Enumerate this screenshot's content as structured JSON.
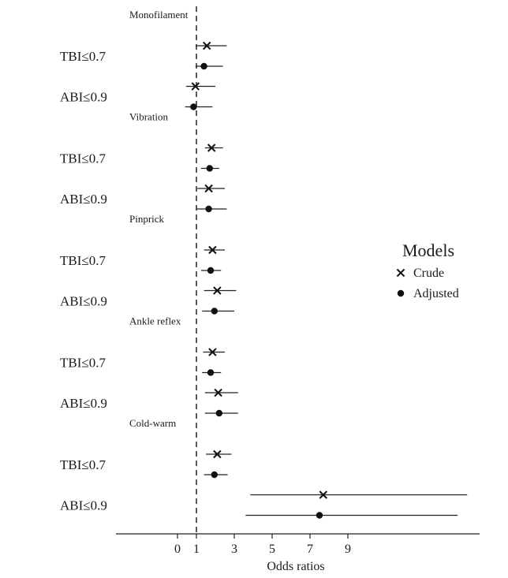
{
  "chart_data": {
    "type": "forest",
    "xlabel": "Odds ratios",
    "xticks": [
      0,
      1,
      3,
      5,
      7,
      9
    ],
    "reference_line": 1,
    "legend": {
      "title": "Models",
      "position": "right",
      "entries": [
        {
          "label": "Crude",
          "marker": "x"
        },
        {
          "label": "Adjusted",
          "marker": "dot"
        }
      ]
    },
    "groups": [
      {
        "name": "Monofilament",
        "rows": [
          {
            "label": "TBI≤0.7",
            "crude": {
              "or": 1.55,
              "lo": 0.95,
              "hi": 2.6
            },
            "adjusted": {
              "or": 1.4,
              "lo": 0.95,
              "hi": 2.4
            }
          },
          {
            "label": "ABI≤0.9",
            "crude": {
              "or": 0.95,
              "lo": 0.45,
              "hi": 2.0
            },
            "adjusted": {
              "or": 0.85,
              "lo": 0.4,
              "hi": 1.85
            }
          }
        ]
      },
      {
        "name": "Vibration",
        "rows": [
          {
            "label": "TBI≤0.7",
            "crude": {
              "or": 1.8,
              "lo": 1.45,
              "hi": 2.4
            },
            "adjusted": {
              "or": 1.7,
              "lo": 1.25,
              "hi": 2.2
            }
          },
          {
            "label": "ABI≤0.9",
            "crude": {
              "or": 1.65,
              "lo": 1.05,
              "hi": 2.5
            },
            "adjusted": {
              "or": 1.65,
              "lo": 1.0,
              "hi": 2.6
            }
          }
        ]
      },
      {
        "name": "Pinprick",
        "rows": [
          {
            "label": "TBI≤0.7",
            "crude": {
              "or": 1.85,
              "lo": 1.4,
              "hi": 2.5
            },
            "adjusted": {
              "or": 1.75,
              "lo": 1.25,
              "hi": 2.3
            }
          },
          {
            "label": "ABI≤0.9",
            "crude": {
              "or": 2.1,
              "lo": 1.4,
              "hi": 3.1
            },
            "adjusted": {
              "or": 1.95,
              "lo": 1.3,
              "hi": 3.0
            }
          }
        ]
      },
      {
        "name": "Ankle reflex",
        "rows": [
          {
            "label": "TBI≤0.7",
            "crude": {
              "or": 1.85,
              "lo": 1.35,
              "hi": 2.5
            },
            "adjusted": {
              "or": 1.75,
              "lo": 1.3,
              "hi": 2.3
            }
          },
          {
            "label": "ABI≤0.9",
            "crude": {
              "or": 2.15,
              "lo": 1.45,
              "hi": 3.2
            },
            "adjusted": {
              "or": 2.2,
              "lo": 1.45,
              "hi": 3.2
            }
          }
        ]
      },
      {
        "name": "Cold-warm",
        "rows": [
          {
            "label": "TBI≤0.7",
            "crude": {
              "or": 2.1,
              "lo": 1.5,
              "hi": 2.85
            },
            "adjusted": {
              "or": 1.95,
              "lo": 1.4,
              "hi": 2.65
            }
          },
          {
            "label": "ABI≤0.9",
            "crude": {
              "or": 7.7,
              "lo": 3.85,
              "hi": 15.3
            },
            "adjusted": {
              "or": 7.5,
              "lo": 3.6,
              "hi": 14.8
            }
          }
        ]
      }
    ]
  }
}
